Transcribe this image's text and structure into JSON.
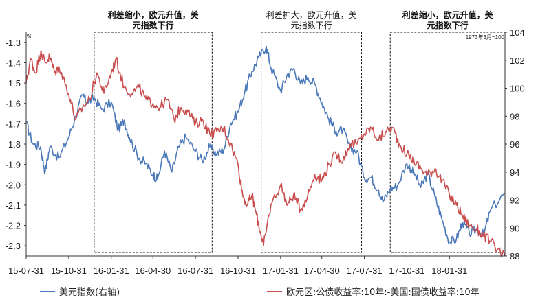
{
  "chart_data": {
    "type": "line",
    "x_ticks": [
      "15-07-31",
      "15-10-31",
      "16-01-31",
      "16-04-30",
      "16-07-31",
      "16-10-31",
      "17-01-31",
      "17-04-30",
      "17-07-31",
      "17-10-31",
      "18-01-31"
    ],
    "x_range": [
      "2015-07-31",
      "2018-05-31"
    ],
    "left_axis": {
      "unit_label": "%",
      "ylim": [
        -2.35,
        -1.25
      ],
      "ticks": [
        "-1.3",
        "-1.4",
        "-1.5",
        "-1.6",
        "-1.7",
        "-1.8",
        "-1.9",
        "-2.0",
        "-2.1",
        "-2.2",
        "-2.3"
      ]
    },
    "right_axis": {
      "unit_label": "1973年3月=100",
      "ylim": [
        88,
        104
      ],
      "ticks": [
        "104",
        "102",
        "100",
        "98",
        "96",
        "94",
        "92",
        "90",
        "88"
      ]
    },
    "annotations": [
      {
        "text_line1": "利差缩小，欧元升值，美",
        "text_line2": "元指数下行",
        "bold": true,
        "x_start": "2015-12-25",
        "x_end": "2016-09-05"
      },
      {
        "text_line1": "利差扩大，欧元升值，美",
        "text_line2": "元指数下行",
        "bold": false,
        "x_start": "2016-12-20",
        "x_end": "2017-07-25"
      },
      {
        "text_line1": "利差缩小，欧元升值，美",
        "text_line2": "元指数下行",
        "bold": true,
        "x_start": "2017-09-25",
        "x_end": "2018-05-31"
      }
    ],
    "series": [
      {
        "name": "美元指数(右轴)",
        "axis": "right",
        "color": "#4a78b8",
        "points": [
          [
            "2015-07-31",
            97.5
          ],
          [
            "2015-08-15",
            96.0
          ],
          [
            "2015-08-31",
            95.8
          ],
          [
            "2015-09-10",
            94.0
          ],
          [
            "2015-09-20",
            95.8
          ],
          [
            "2015-10-10",
            95.0
          ],
          [
            "2015-10-31",
            96.5
          ],
          [
            "2015-11-15",
            98.0
          ],
          [
            "2015-11-30",
            99.5
          ],
          [
            "2015-12-10",
            99.0
          ],
          [
            "2015-12-25",
            99.3
          ],
          [
            "2016-01-10",
            98.5
          ],
          [
            "2016-01-31",
            99.0
          ],
          [
            "2016-02-15",
            97.0
          ],
          [
            "2016-02-28",
            97.7
          ],
          [
            "2016-03-10",
            96.5
          ],
          [
            "2016-03-31",
            95.0
          ],
          [
            "2016-04-15",
            94.6
          ],
          [
            "2016-04-30",
            93.8
          ],
          [
            "2016-05-10",
            93.5
          ],
          [
            "2016-05-25",
            95.5
          ],
          [
            "2016-06-10",
            94.0
          ],
          [
            "2016-06-25",
            95.8
          ],
          [
            "2016-07-10",
            96.5
          ],
          [
            "2016-07-31",
            95.5
          ],
          [
            "2016-08-15",
            94.8
          ],
          [
            "2016-08-31",
            95.8
          ],
          [
            "2016-09-15",
            95.3
          ],
          [
            "2016-09-30",
            95.6
          ],
          [
            "2016-10-15",
            97.5
          ],
          [
            "2016-10-31",
            98.3
          ],
          [
            "2016-11-15",
            99.8
          ],
          [
            "2016-11-30",
            101.2
          ],
          [
            "2016-12-15",
            102.2
          ],
          [
            "2016-12-31",
            103.0
          ],
          [
            "2017-01-10",
            101.5
          ],
          [
            "2017-01-31",
            99.8
          ],
          [
            "2017-02-15",
            101.0
          ],
          [
            "2017-02-28",
            101.4
          ],
          [
            "2017-03-15",
            100.3
          ],
          [
            "2017-03-31",
            100.8
          ],
          [
            "2017-04-15",
            100.3
          ],
          [
            "2017-04-30",
            99.0
          ],
          [
            "2017-05-15",
            97.8
          ],
          [
            "2017-05-31",
            96.9
          ],
          [
            "2017-06-15",
            97.0
          ],
          [
            "2017-06-30",
            95.7
          ],
          [
            "2017-07-15",
            95.5
          ],
          [
            "2017-07-31",
            93.6
          ],
          [
            "2017-08-15",
            93.6
          ],
          [
            "2017-08-31",
            92.7
          ],
          [
            "2017-09-10",
            91.9
          ],
          [
            "2017-09-25",
            92.8
          ],
          [
            "2017-10-10",
            93.0
          ],
          [
            "2017-10-31",
            94.6
          ],
          [
            "2017-11-15",
            94.0
          ],
          [
            "2017-11-30",
            92.9
          ],
          [
            "2017-12-15",
            93.9
          ],
          [
            "2017-12-31",
            92.2
          ],
          [
            "2018-01-15",
            90.6
          ],
          [
            "2018-01-31",
            89.0
          ],
          [
            "2018-02-15",
            89.2
          ],
          [
            "2018-02-28",
            90.4
          ],
          [
            "2018-03-15",
            89.6
          ],
          [
            "2018-03-31",
            89.9
          ],
          [
            "2018-04-15",
            89.5
          ],
          [
            "2018-04-30",
            91.3
          ],
          [
            "2018-05-31",
            92.5
          ]
        ]
      },
      {
        "name": "欧元区:公债收益率:10年:-美国:国债收益率:10年",
        "axis": "left",
        "color": "#c94d4d",
        "points": [
          [
            "2015-07-31",
            -1.5
          ],
          [
            "2015-08-10",
            -1.38
          ],
          [
            "2015-08-20",
            -1.45
          ],
          [
            "2015-09-01",
            -1.34
          ],
          [
            "2015-09-10",
            -1.4
          ],
          [
            "2015-09-20",
            -1.37
          ],
          [
            "2015-10-01",
            -1.45
          ],
          [
            "2015-10-10",
            -1.42
          ],
          [
            "2015-10-31",
            -1.55
          ],
          [
            "2015-11-15",
            -1.68
          ],
          [
            "2015-11-30",
            -1.62
          ],
          [
            "2015-12-15",
            -1.58
          ],
          [
            "2015-12-31",
            -1.45
          ],
          [
            "2016-01-15",
            -1.55
          ],
          [
            "2016-01-31",
            -1.45
          ],
          [
            "2016-02-10",
            -1.38
          ],
          [
            "2016-02-28",
            -1.52
          ],
          [
            "2016-03-15",
            -1.55
          ],
          [
            "2016-03-31",
            -1.52
          ],
          [
            "2016-04-15",
            -1.58
          ],
          [
            "2016-04-30",
            -1.6
          ],
          [
            "2016-05-15",
            -1.62
          ],
          [
            "2016-05-31",
            -1.58
          ],
          [
            "2016-06-15",
            -1.68
          ],
          [
            "2016-06-30",
            -1.62
          ],
          [
            "2016-07-15",
            -1.64
          ],
          [
            "2016-07-31",
            -1.7
          ],
          [
            "2016-08-15",
            -1.68
          ],
          [
            "2016-08-31",
            -1.75
          ],
          [
            "2016-09-15",
            -1.74
          ],
          [
            "2016-09-30",
            -1.72
          ],
          [
            "2016-10-15",
            -1.8
          ],
          [
            "2016-10-31",
            -1.9
          ],
          [
            "2016-11-10",
            -2.05
          ],
          [
            "2016-11-20",
            -2.1
          ],
          [
            "2016-11-30",
            -2.05
          ],
          [
            "2016-12-10",
            -2.15
          ],
          [
            "2016-12-20",
            -2.25
          ],
          [
            "2016-12-25",
            -2.3
          ],
          [
            "2017-01-10",
            -2.1
          ],
          [
            "2017-01-31",
            -2.0
          ],
          [
            "2017-02-15",
            -2.1
          ],
          [
            "2017-02-28",
            -2.05
          ],
          [
            "2017-03-15",
            -2.12
          ],
          [
            "2017-03-31",
            -2.05
          ],
          [
            "2017-04-15",
            -1.95
          ],
          [
            "2017-04-30",
            -1.98
          ],
          [
            "2017-05-15",
            -1.9
          ],
          [
            "2017-05-31",
            -1.85
          ],
          [
            "2017-06-15",
            -1.88
          ],
          [
            "2017-06-30",
            -1.8
          ],
          [
            "2017-07-15",
            -1.8
          ],
          [
            "2017-07-31",
            -1.75
          ],
          [
            "2017-08-15",
            -1.72
          ],
          [
            "2017-08-31",
            -1.78
          ],
          [
            "2017-09-15",
            -1.74
          ],
          [
            "2017-09-30",
            -1.72
          ],
          [
            "2017-10-15",
            -1.8
          ],
          [
            "2017-10-31",
            -1.85
          ],
          [
            "2017-11-15",
            -1.88
          ],
          [
            "2017-11-30",
            -1.92
          ],
          [
            "2017-12-15",
            -1.95
          ],
          [
            "2017-12-31",
            -1.92
          ],
          [
            "2018-01-15",
            -1.98
          ],
          [
            "2018-01-31",
            -2.05
          ],
          [
            "2018-02-15",
            -2.1
          ],
          [
            "2018-02-28",
            -2.15
          ],
          [
            "2018-03-15",
            -2.2
          ],
          [
            "2018-03-31",
            -2.22
          ],
          [
            "2018-04-15",
            -2.25
          ],
          [
            "2018-04-30",
            -2.28
          ],
          [
            "2018-05-31",
            -2.35
          ]
        ]
      }
    ],
    "legend_placement": "bottom",
    "grid": false
  }
}
